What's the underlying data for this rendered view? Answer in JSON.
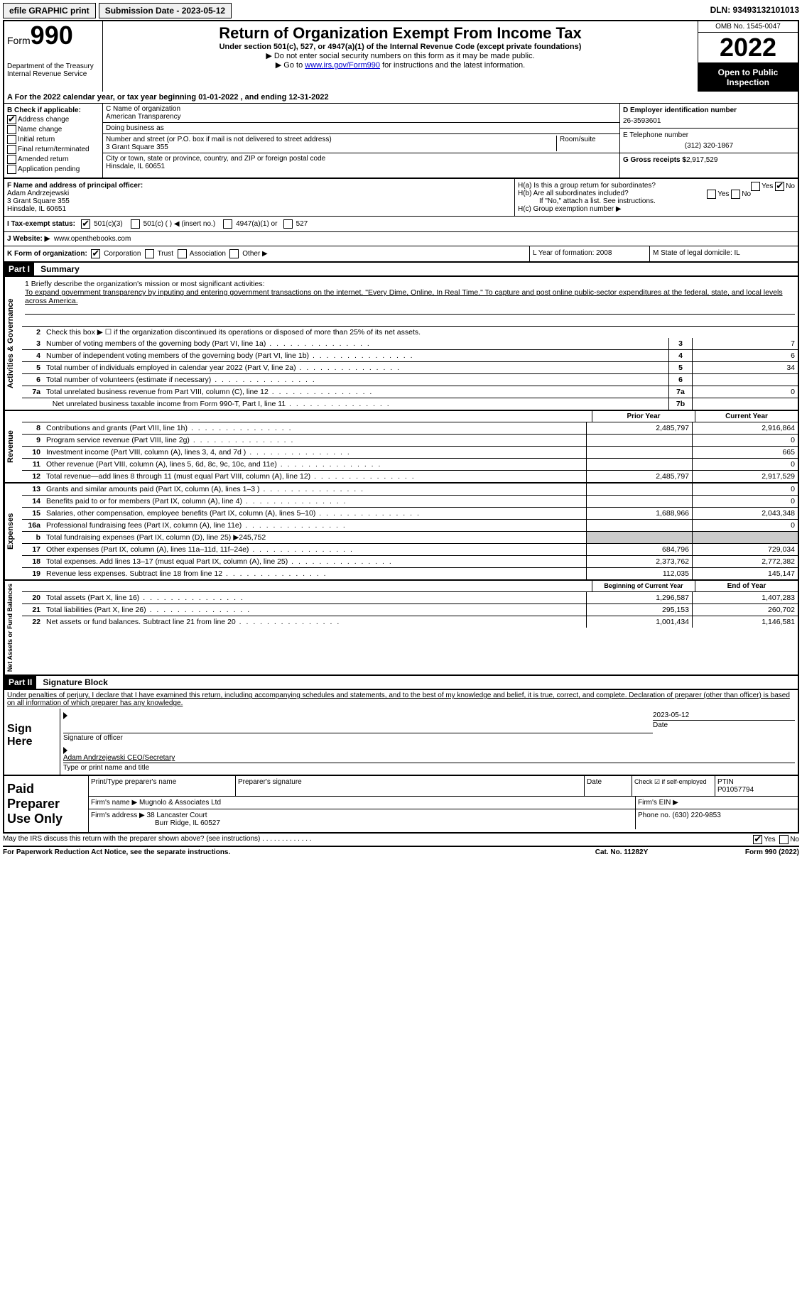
{
  "topbar": {
    "efile": "efile GRAPHIC print",
    "submission_label": "Submission Date - 2023-05-12",
    "dln": "DLN: 93493132101013"
  },
  "header": {
    "form_label": "Form",
    "form_number": "990",
    "dept": "Department of the Treasury\nInternal Revenue Service",
    "title": "Return of Organization Exempt From Income Tax",
    "subtitle": "Under section 501(c), 527, or 4947(a)(1) of the Internal Revenue Code (except private foundations)",
    "warn": "Do not enter social security numbers on this form as it may be made public.",
    "goto_pre": "Go to ",
    "goto_link": "www.irs.gov/Form990",
    "goto_post": " for instructions and the latest information.",
    "omb": "OMB No. 1545-0047",
    "year": "2022",
    "open_pub": "Open to Public Inspection"
  },
  "section_a": "A For the 2022 calendar year, or tax year beginning 01-01-2022  , and ending 12-31-2022",
  "col_b": {
    "header": "B Check if applicable:",
    "address_change": "Address change",
    "name_change": "Name change",
    "initial_return": "Initial return",
    "final_return": "Final return/terminated",
    "amended_return": "Amended return",
    "application_pending": "Application pending"
  },
  "col_c": {
    "name_label": "C Name of organization",
    "name": "American Transparency",
    "dba_label": "Doing business as",
    "dba": "",
    "street_label": "Number and street (or P.O. box if mail is not delivered to street address)",
    "room_label": "Room/suite",
    "street": "3 Grant Square 355",
    "city_label": "City or town, state or province, country, and ZIP or foreign postal code",
    "city": "Hinsdale, IL  60651"
  },
  "col_d": {
    "ein_label": "D Employer identification number",
    "ein": "26-3593601",
    "tel_label": "E Telephone number",
    "tel": "(312) 320-1867",
    "gross_label": "G Gross receipts $",
    "gross": "2,917,529"
  },
  "block_f": {
    "label": "F Name and address of principal officer:",
    "name": "Adam Andrzejewski",
    "street": "3 Grant Square 355",
    "city": "Hinsdale, IL  60651"
  },
  "block_h": {
    "ha": "H(a) Is this a group return for subordinates?",
    "hb": "H(b) Are all subordinates included?",
    "hb_note": "If \"No,\" attach a list. See instructions.",
    "hc": "H(c) Group exemption number ▶",
    "yes": "Yes",
    "no": "No"
  },
  "tax_status": {
    "label": "I  Tax-exempt status:",
    "c3": "501(c)(3)",
    "cOther": "501(c) (  ) ◀ (insert no.)",
    "a4947": "4947(a)(1) or",
    "s527": "527"
  },
  "website": {
    "label": "J  Website: ▶",
    "url": "www.openthebooks.com"
  },
  "k_row": {
    "k": "K Form of organization:",
    "corp": "Corporation",
    "trust": "Trust",
    "assoc": "Association",
    "other": "Other ▶",
    "l": "L Year of formation: 2008",
    "m": "M State of legal domicile: IL"
  },
  "part1": {
    "header": "Part I",
    "title": "Summary",
    "mission_label": "1  Briefly describe the organization's mission or most significant activities:",
    "mission": "To expand government transparency by inputing and entering government transactions on the internet. \"Every Dime, Online, In Real Time.\" To capture and post online public-sector expenditures at the federal, state, and local levels across America.",
    "line2": "Check this box ▶ ☐ if the organization discontinued its operations or disposed of more than 25% of its net assets.",
    "side_ag": "Activities & Governance",
    "side_rev": "Revenue",
    "side_exp": "Expenses",
    "side_net": "Net Assets or Fund Balances",
    "lines": {
      "3": {
        "text": "Number of voting members of the governing body (Part VI, line 1a)",
        "box": "3",
        "v": "7"
      },
      "4": {
        "text": "Number of independent voting members of the governing body (Part VI, line 1b)",
        "box": "4",
        "v": "6"
      },
      "5": {
        "text": "Total number of individuals employed in calendar year 2022 (Part V, line 2a)",
        "box": "5",
        "v": "34"
      },
      "6": {
        "text": "Total number of volunteers (estimate if necessary)",
        "box": "6",
        "v": ""
      },
      "7a": {
        "text": "Total unrelated business revenue from Part VIII, column (C), line 12",
        "box": "7a",
        "v": "0"
      },
      "7b": {
        "text": "Net unrelated business taxable income from Form 990-T, Part I, line 11",
        "box": "7b",
        "v": ""
      }
    },
    "col_heads": {
      "prior": "Prior Year",
      "current": "Current Year"
    },
    "rev_lines": {
      "8": {
        "text": "Contributions and grants (Part VIII, line 1h)",
        "p": "2,485,797",
        "c": "2,916,864"
      },
      "9": {
        "text": "Program service revenue (Part VIII, line 2g)",
        "p": "",
        "c": "0"
      },
      "10": {
        "text": "Investment income (Part VIII, column (A), lines 3, 4, and 7d )",
        "p": "",
        "c": "665"
      },
      "11": {
        "text": "Other revenue (Part VIII, column (A), lines 5, 6d, 8c, 9c, 10c, and 11e)",
        "p": "",
        "c": "0"
      },
      "12": {
        "text": "Total revenue—add lines 8 through 11 (must equal Part VIII, column (A), line 12)",
        "p": "2,485,797",
        "c": "2,917,529"
      }
    },
    "exp_lines": {
      "13": {
        "text": "Grants and similar amounts paid (Part IX, column (A), lines 1–3 )",
        "p": "",
        "c": "0"
      },
      "14": {
        "text": "Benefits paid to or for members (Part IX, column (A), line 4)",
        "p": "",
        "c": "0"
      },
      "15": {
        "text": "Salaries, other compensation, employee benefits (Part IX, column (A), lines 5–10)",
        "p": "1,688,966",
        "c": "2,043,348"
      },
      "16a": {
        "text": "Professional fundraising fees (Part IX, column (A), line 11e)",
        "p": "",
        "c": "0"
      },
      "16b": {
        "text": "Total fundraising expenses (Part IX, column (D), line 25) ▶245,752",
        "p": "GREY",
        "c": "GREY"
      },
      "17": {
        "text": "Other expenses (Part IX, column (A), lines 11a–11d, 11f–24e)",
        "p": "684,796",
        "c": "729,034"
      },
      "18": {
        "text": "Total expenses. Add lines 13–17 (must equal Part IX, column (A), line 25)",
        "p": "2,373,762",
        "c": "2,772,382"
      },
      "19": {
        "text": "Revenue less expenses. Subtract line 18 from line 12",
        "p": "112,035",
        "c": "145,147"
      }
    },
    "net_heads": {
      "begin": "Beginning of Current Year",
      "end": "End of Year"
    },
    "net_lines": {
      "20": {
        "text": "Total assets (Part X, line 16)",
        "p": "1,296,587",
        "c": "1,407,283"
      },
      "21": {
        "text": "Total liabilities (Part X, line 26)",
        "p": "295,153",
        "c": "260,702"
      },
      "22": {
        "text": "Net assets or fund balances. Subtract line 21 from line 20",
        "p": "1,001,434",
        "c": "1,146,581"
      }
    }
  },
  "part2": {
    "header": "Part II",
    "title": "Signature Block",
    "penalties": "Under penalties of perjury, I declare that I have examined this return, including accompanying schedules and statements, and to the best of my knowledge and belief, it is true, correct, and complete. Declaration of preparer (other than officer) is based on all information of which preparer has any knowledge.",
    "sign_here": "Sign Here",
    "sig_officer": "Signature of officer",
    "date": "Date",
    "sig_date": "2023-05-12",
    "officer_name": "Adam Andrzejewski CEO/Secretary",
    "type_name": "Type or print name and title",
    "paid_prep": "Paid Preparer Use Only",
    "p_name_label": "Print/Type preparer's name",
    "p_name": "",
    "p_sig_label": "Preparer's signature",
    "p_date": "Date",
    "p_check": "Check ☑ if self-employed",
    "ptin_label": "PTIN",
    "ptin": "P01057794",
    "firm_name_label": "Firm's name  ▶",
    "firm_name": "Mugnolo & Associates Ltd",
    "firm_ein_label": "Firm's EIN ▶",
    "firm_addr_label": "Firm's address ▶",
    "firm_addr1": "38 Lancaster Court",
    "firm_addr2": "Burr Ridge, IL  60527",
    "phone_label": "Phone no.",
    "phone": "(630) 220-9853"
  },
  "footer": {
    "discuss": "May the IRS discuss this return with the preparer shown above? (see instructions)",
    "yes": "Yes",
    "no": "No",
    "paperwork": "For Paperwork Reduction Act Notice, see the separate instructions.",
    "cat": "Cat. No. 11282Y",
    "form": "Form 990 (2022)"
  }
}
